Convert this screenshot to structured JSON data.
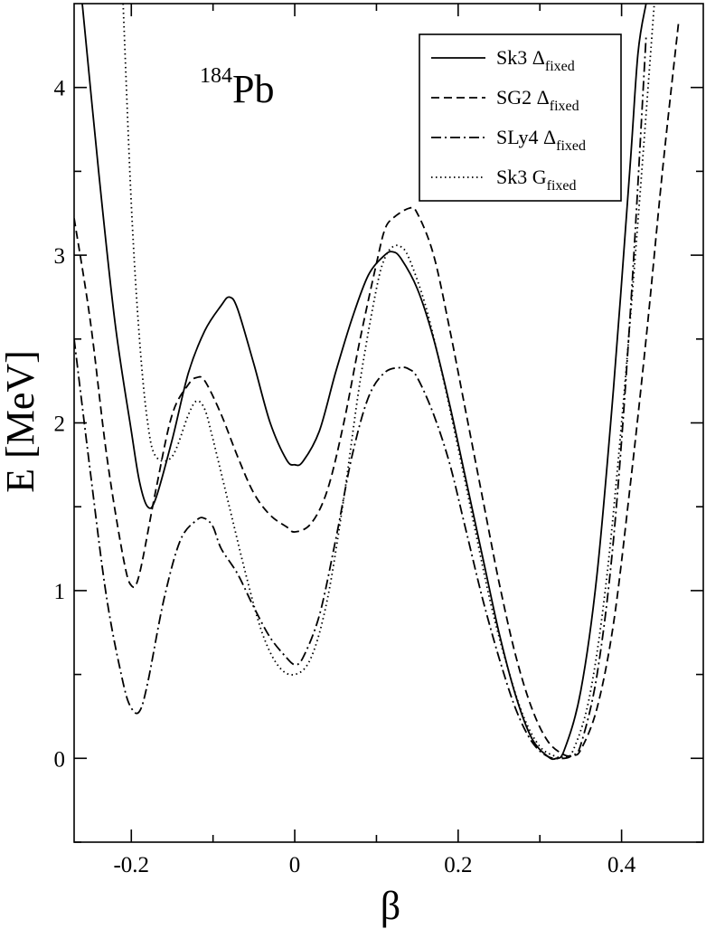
{
  "chart_data": {
    "type": "line",
    "title": "",
    "annotation": {
      "mass_number": "184",
      "element": "Pb"
    },
    "xlabel": "β",
    "ylabel": "E [MeV]",
    "xlim": [
      -0.27,
      0.5
    ],
    "ylim": [
      -0.5,
      4.5
    ],
    "xticks": [
      -0.2,
      0,
      0.2,
      0.4
    ],
    "xtick_labels": [
      "-0.2",
      "0",
      "0.2",
      "0.4"
    ],
    "yticks": [
      0,
      1,
      2,
      3,
      4
    ],
    "ytick_labels": [
      "0",
      "1",
      "2",
      "3",
      "4"
    ],
    "grid": false,
    "legend_position": "top-right",
    "series": [
      {
        "name": "Sk3 Δfixed",
        "legend_main": "Sk3 Δ",
        "legend_sub": "fixed",
        "style": "solid",
        "x": [
          -0.26,
          -0.24,
          -0.22,
          -0.2,
          -0.19,
          -0.18,
          -0.17,
          -0.15,
          -0.13,
          -0.11,
          -0.09,
          -0.08,
          -0.07,
          -0.05,
          -0.03,
          -0.01,
          0.0,
          0.01,
          0.03,
          0.05,
          0.07,
          0.09,
          0.11,
          0.12,
          0.13,
          0.15,
          0.17,
          0.19,
          0.21,
          0.23,
          0.25,
          0.27,
          0.29,
          0.31,
          0.32,
          0.33,
          0.35,
          0.37,
          0.39,
          0.41,
          0.42,
          0.43
        ],
        "y": [
          4.5,
          3.5,
          2.6,
          1.95,
          1.65,
          1.5,
          1.55,
          1.9,
          2.3,
          2.55,
          2.7,
          2.75,
          2.68,
          2.35,
          2.0,
          1.78,
          1.75,
          1.77,
          1.95,
          2.3,
          2.62,
          2.88,
          3.0,
          3.02,
          2.98,
          2.8,
          2.5,
          2.1,
          1.65,
          1.2,
          0.75,
          0.38,
          0.12,
          0.01,
          0.0,
          0.05,
          0.4,
          1.1,
          2.2,
          3.5,
          4.2,
          4.5
        ]
      },
      {
        "name": "SG2 Δfixed",
        "legend_main": "SG2 Δ",
        "legend_sub": "fixed",
        "style": "dashed",
        "x": [
          -0.27,
          -0.25,
          -0.23,
          -0.21,
          -0.2,
          -0.19,
          -0.17,
          -0.15,
          -0.13,
          -0.12,
          -0.11,
          -0.09,
          -0.07,
          -0.05,
          -0.03,
          -0.01,
          0.0,
          0.02,
          0.04,
          0.06,
          0.08,
          0.1,
          0.11,
          0.12,
          0.14,
          0.15,
          0.17,
          0.19,
          0.21,
          0.23,
          0.25,
          0.27,
          0.29,
          0.31,
          0.33,
          0.34,
          0.35,
          0.37,
          0.39,
          0.41,
          0.43,
          0.45,
          0.47
        ],
        "y": [
          3.22,
          2.6,
          1.8,
          1.2,
          1.03,
          1.1,
          1.6,
          2.05,
          2.23,
          2.27,
          2.25,
          2.05,
          1.8,
          1.58,
          1.45,
          1.38,
          1.35,
          1.4,
          1.6,
          2.0,
          2.5,
          2.95,
          3.15,
          3.22,
          3.28,
          3.25,
          3.0,
          2.55,
          2.05,
          1.55,
          1.05,
          0.62,
          0.3,
          0.1,
          0.02,
          0.02,
          0.05,
          0.3,
          0.8,
          1.6,
          2.5,
          3.5,
          4.4
        ]
      },
      {
        "name": "SLy4 Δfixed",
        "legend_main": "SLy4 Δ",
        "legend_sub": "fixed",
        "style": "dashdot",
        "x": [
          -0.27,
          -0.25,
          -0.23,
          -0.21,
          -0.2,
          -0.19,
          -0.18,
          -0.16,
          -0.14,
          -0.12,
          -0.11,
          -0.1,
          -0.09,
          -0.07,
          -0.05,
          -0.03,
          -0.01,
          0.0,
          0.01,
          0.03,
          0.05,
          0.07,
          0.09,
          0.11,
          0.13,
          0.14,
          0.15,
          0.17,
          0.19,
          0.21,
          0.23,
          0.25,
          0.27,
          0.29,
          0.31,
          0.33,
          0.34,
          0.35,
          0.37,
          0.39,
          0.41,
          0.43
        ],
        "y": [
          2.5,
          1.7,
          0.95,
          0.45,
          0.3,
          0.28,
          0.45,
          0.95,
          1.3,
          1.42,
          1.43,
          1.38,
          1.25,
          1.1,
          0.9,
          0.72,
          0.6,
          0.56,
          0.6,
          0.85,
          1.3,
          1.8,
          2.15,
          2.3,
          2.33,
          2.32,
          2.27,
          2.05,
          1.75,
          1.35,
          0.95,
          0.6,
          0.3,
          0.1,
          0.01,
          0.0,
          0.02,
          0.08,
          0.5,
          1.3,
          2.6,
          4.3
        ]
      },
      {
        "name": "Sk3 Gfixed",
        "legend_main": "Sk3 G",
        "legend_sub": "fixed",
        "style": "dotted",
        "x": [
          -0.21,
          -0.2,
          -0.19,
          -0.18,
          -0.17,
          -0.15,
          -0.13,
          -0.12,
          -0.11,
          -0.1,
          -0.08,
          -0.06,
          -0.04,
          -0.02,
          0.0,
          0.02,
          0.04,
          0.06,
          0.08,
          0.1,
          0.11,
          0.12,
          0.13,
          0.14,
          0.16,
          0.18,
          0.2,
          0.22,
          0.24,
          0.26,
          0.28,
          0.3,
          0.32,
          0.33,
          0.34,
          0.36,
          0.38,
          0.4,
          0.42,
          0.44
        ],
        "y": [
          4.5,
          3.3,
          2.5,
          2.0,
          1.8,
          1.8,
          2.05,
          2.13,
          2.08,
          1.9,
          1.5,
          1.1,
          0.75,
          0.55,
          0.5,
          0.6,
          0.95,
          1.55,
          2.25,
          2.8,
          2.98,
          3.05,
          3.05,
          2.98,
          2.7,
          2.3,
          1.85,
          1.38,
          0.92,
          0.55,
          0.25,
          0.07,
          0.01,
          0.01,
          0.04,
          0.35,
          1.0,
          2.0,
          3.2,
          4.5
        ]
      }
    ]
  }
}
